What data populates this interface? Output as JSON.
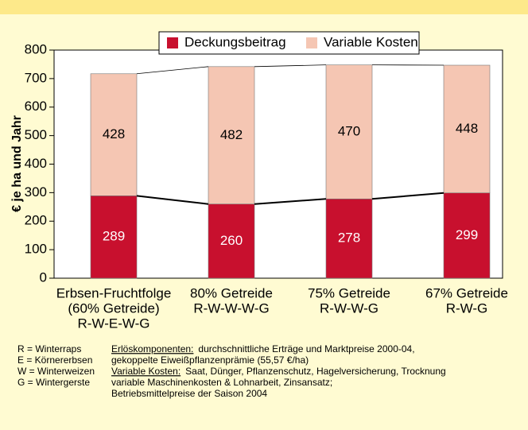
{
  "chart_data": {
    "type": "stacked_bar",
    "ylabel": "€ je ha und Jahr",
    "categories": [
      [
        "Erbsen-Fruchtfolge",
        "(60% Getreide)",
        "R-W-E-W-G"
      ],
      [
        "80% Getreide",
        "R-W-W-W-G"
      ],
      [
        "75% Getreide",
        "R-W-W-G"
      ],
      [
        "67% Getreide",
        "R-W-G"
      ]
    ],
    "series": [
      {
        "name": "Deckungsbeitrag",
        "color": "#c8102e",
        "values": [
          289,
          260,
          278,
          299
        ]
      },
      {
        "name": "Variable Kosten",
        "color": "#f5c6b3",
        "values": [
          428,
          482,
          470,
          448
        ]
      }
    ],
    "ylim": [
      0,
      800
    ],
    "yticks": [
      0,
      100,
      200,
      300,
      400,
      500,
      600,
      700,
      800
    ],
    "legend": "top",
    "footnotes": {
      "abbreviations": [
        "R = Winterraps",
        "E = Körnererbsen",
        "W = Winterweizen",
        "G = Wintergerste"
      ],
      "notes": [
        {
          "heading": "Erlöskomponenten:",
          "lines": [
            "durchschnittliche Erträge und Marktpreise 2000-04,",
            "gekoppelte Eiweißpflanzenprämie (55,57 €/ha)"
          ]
        },
        {
          "heading": "Variable Kosten:",
          "lines": [
            "Saat, Dünger, Pflanzenschutz, Hagelversicherung, Trocknung",
            "variable Maschinenkosten & Lohnarbeit, Zinsansatz;",
            "Betriebsmittelpreise der Saison 2004"
          ]
        }
      ]
    }
  }
}
